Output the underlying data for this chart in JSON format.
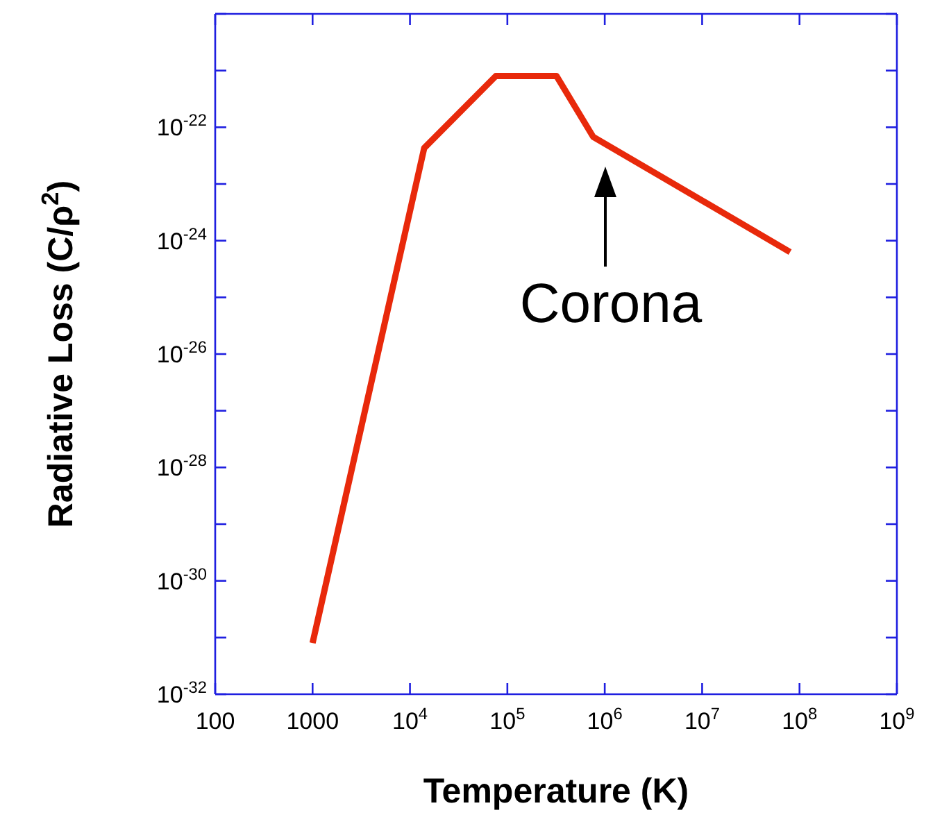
{
  "chart_data": {
    "type": "line",
    "xlabel": "Temperature (K)",
    "ylabel": "Radiative Loss  (C/ρ$^{2}$)",
    "log": "xy",
    "x": [
      1000,
      14000,
      76000,
      320000,
      760000,
      80000000
    ],
    "series": [
      {
        "color": "#e8290b",
        "values": [
          8e-32,
          4.3e-23,
          8e-22,
          8e-22,
          6.8e-23,
          6.3e-25
        ]
      }
    ],
    "xlim": [
      100,
      1000000000
    ],
    "xticks": [
      100,
      1000,
      {
        "value": 10000,
        "label": "10$^{4}$"
      },
      {
        "value": 100000,
        "label": "10$^{5}$"
      },
      {
        "value": 1000000,
        "label": "10$^{6}$"
      },
      {
        "value": 10000000,
        "label": "10$^{7}$"
      },
      {
        "value": 100000000,
        "label": "10$^{8}$"
      },
      {
        "value": 1000000000,
        "label": "10$^{9}$"
      }
    ],
    "ylim": [
      1e-32,
      1e-20
    ],
    "yticks": [
      {
        "value": 1e-32,
        "label": "10$^{-32}$"
      },
      {
        "value": 1e-31,
        "label": null
      },
      {
        "value": 1e-30,
        "label": "10$^{-30}$"
      },
      {
        "value": 1e-29,
        "label": null
      },
      {
        "value": 1e-28,
        "label": "10$^{-28}$"
      },
      {
        "value": 1e-27,
        "label": null
      },
      {
        "value": 1e-26,
        "label": "10$^{-26}$"
      },
      {
        "value": 1e-25,
        "label": null
      },
      {
        "value": 1e-24,
        "label": "10$^{-24}$"
      },
      {
        "value": 1e-23,
        "label": null
      },
      {
        "value": 1e-22,
        "label": "10$^{-22}$"
      },
      {
        "value": 1e-21,
        "label": null
      },
      {
        "value": 1e-20,
        "label": null
      }
    ],
    "annotations": [
      "Corona"
    ],
    "grid": false,
    "marker": "none",
    "line_style": "solid"
  }
}
